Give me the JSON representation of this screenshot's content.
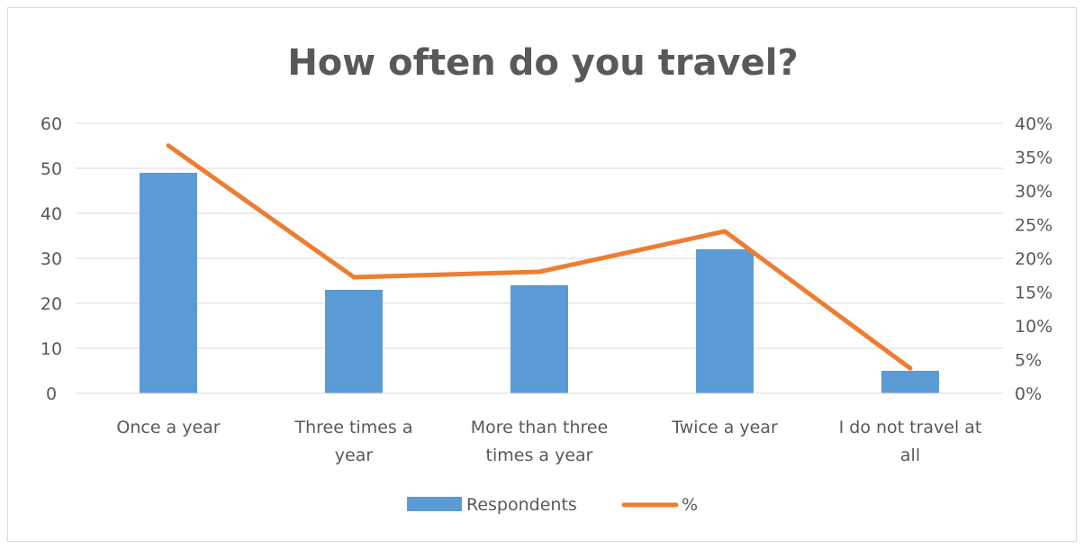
{
  "chart_data": {
    "type": "bar",
    "title": "How often do you travel?",
    "categories": [
      [
        "Once a year"
      ],
      [
        "Three times a",
        "year"
      ],
      [
        "More than three",
        "times a year"
      ],
      [
        "Twice a year"
      ],
      [
        "I do not travel at",
        "all"
      ]
    ],
    "series": [
      {
        "name": "Respondents",
        "type": "bar",
        "axis": "left",
        "color": "#5b9bd5",
        "values": [
          49,
          23,
          24,
          32,
          5
        ]
      },
      {
        "name": "%",
        "type": "line",
        "axis": "right",
        "color": "#ed7d31",
        "values": [
          0.367,
          0.172,
          0.18,
          0.24,
          0.037
        ]
      }
    ],
    "y_left": {
      "min": 0,
      "max": 60,
      "step": 10,
      "ticks": [
        "0",
        "10",
        "20",
        "30",
        "40",
        "50",
        "60"
      ]
    },
    "y_right": {
      "min": 0,
      "max": 0.4,
      "step": 0.05,
      "ticks": [
        "0%",
        "5%",
        "10%",
        "15%",
        "20%",
        "25%",
        "30%",
        "35%",
        "40%"
      ]
    },
    "grid": true,
    "legend": "bottom"
  }
}
